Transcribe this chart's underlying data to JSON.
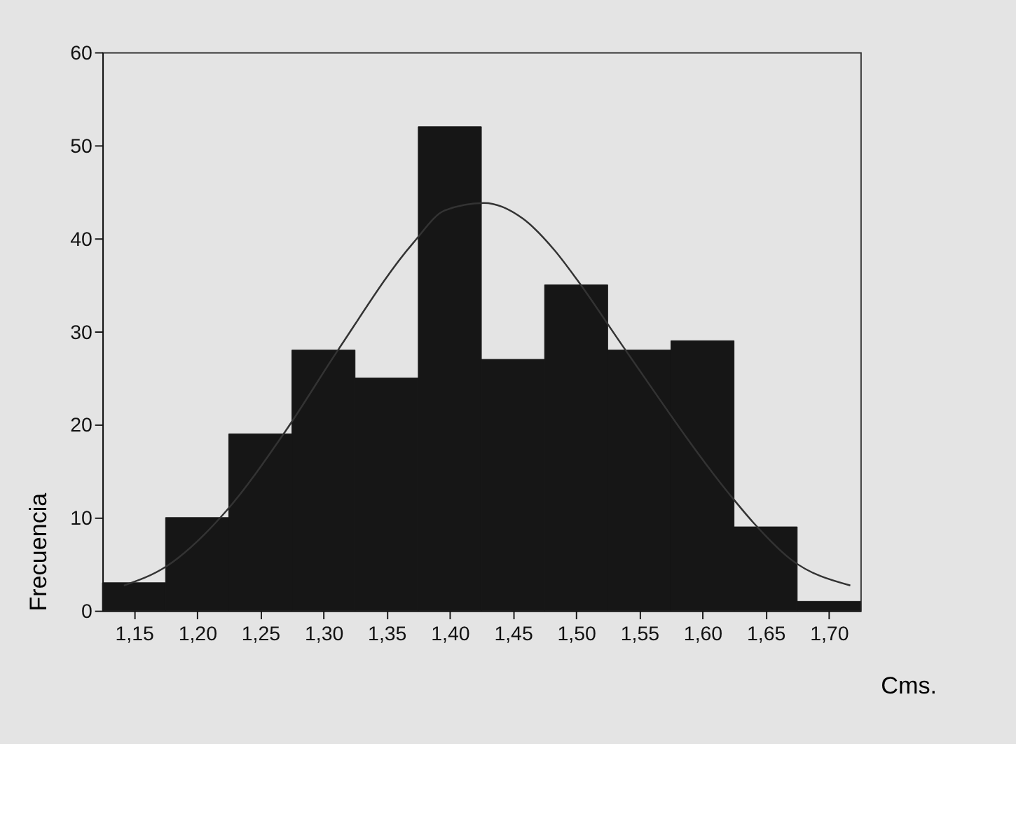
{
  "chart_data": {
    "type": "histogram",
    "xlabel": "Cms.",
    "ylabel": "Frecuencia",
    "bins": [
      1.125,
      1.175,
      1.225,
      1.275,
      1.325,
      1.375,
      1.425,
      1.475,
      1.525,
      1.575,
      1.625,
      1.675,
      1.725
    ],
    "values": [
      3,
      10,
      19,
      28,
      25,
      52,
      27,
      35,
      28,
      29,
      9,
      1
    ],
    "color": "#161616",
    "series": [
      {
        "type": "line",
        "color": "#333333",
        "x": [
          1.142,
          1.175,
          1.223,
          1.27,
          1.312,
          1.371,
          1.396,
          1.427,
          1.458,
          1.483,
          1.501,
          1.537,
          1.622,
          1.64,
          1.67,
          1.717
        ],
        "values": [
          2.7,
          4.7,
          10.7,
          19.3,
          28.1,
          39.5,
          43.0,
          43.8,
          42.1,
          38.7,
          35.5,
          28.4,
          12.4,
          9.5,
          5.5,
          2.7
        ]
      }
    ],
    "xlim": [
      1.125,
      1.725
    ],
    "xticks": [
      {
        "value": 1.15,
        "label": "1,15"
      },
      {
        "value": 1.2,
        "label": "1,20"
      },
      {
        "value": 1.25,
        "label": "1,25"
      },
      {
        "value": 1.3,
        "label": "1,30"
      },
      {
        "value": 1.35,
        "label": "1,35"
      },
      {
        "value": 1.4,
        "label": "1,40"
      },
      {
        "value": 1.45,
        "label": "1,45"
      },
      {
        "value": 1.5,
        "label": "1,50"
      },
      {
        "value": 1.55,
        "label": "1,55"
      },
      {
        "value": 1.6,
        "label": "1,60"
      },
      {
        "value": 1.65,
        "label": "1,65"
      },
      {
        "value": 1.7,
        "label": "1,70"
      }
    ],
    "ylim": [
      0,
      60
    ],
    "yticks": [
      0,
      10,
      20,
      30,
      40,
      50,
      60
    ],
    "grid": false
  }
}
